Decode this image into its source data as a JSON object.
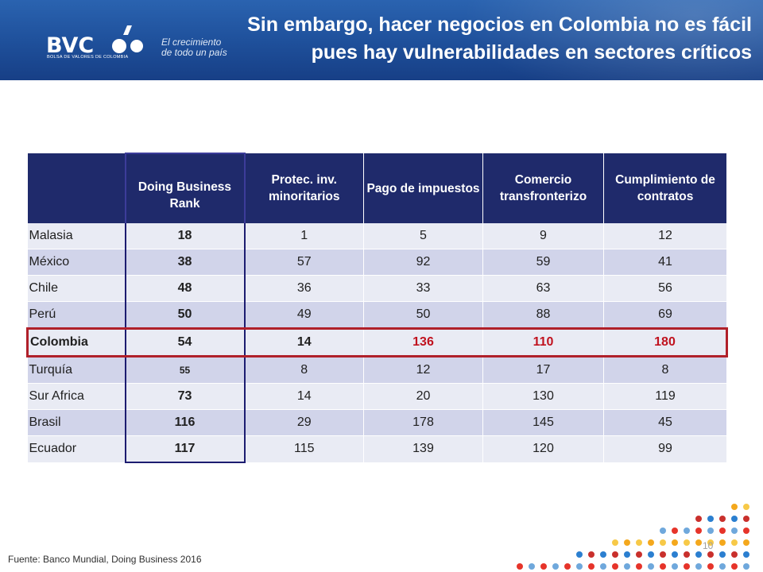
{
  "header": {
    "title_line1": "Sin embargo, hacer negocios en Colombia no es fácil",
    "title_line2": "pues hay vulnerabilidades en sectores críticos",
    "logo_text": "BVC",
    "logo_subtext": "BOLSA DE VALORES DE COLOMBIA",
    "tagline_line1": "El crecimiento",
    "tagline_line2": "de todo un país"
  },
  "table": {
    "columns": [
      "",
      "Doing Business Rank",
      "Protec. inv. minoritarios",
      "Pago de impuestos",
      "Comercio transfronterizo",
      "Cumplimiento de contratos"
    ],
    "rows": [
      {
        "country": "Malasia",
        "values": [
          "18",
          "1",
          "5",
          "9",
          "12"
        ]
      },
      {
        "country": "México",
        "values": [
          "38",
          "57",
          "92",
          "59",
          "41"
        ]
      },
      {
        "country": "Chile",
        "values": [
          "48",
          "36",
          "33",
          "63",
          "56"
        ]
      },
      {
        "country": "Perú",
        "values": [
          "50",
          "49",
          "50",
          "88",
          "69"
        ]
      },
      {
        "country": "Colombia",
        "values": [
          "54",
          "14",
          "136",
          "110",
          "180"
        ]
      },
      {
        "country": "Turquía",
        "values": [
          "55",
          "8",
          "12",
          "17",
          "8"
        ]
      },
      {
        "country": "Sur Africa",
        "values": [
          "73",
          "14",
          "20",
          "130",
          "119"
        ]
      },
      {
        "country": "Brasil",
        "values": [
          "116",
          "29",
          "178",
          "145",
          "45"
        ]
      },
      {
        "country": "Ecuador",
        "values": [
          "117",
          "115",
          "139",
          "120",
          "99"
        ]
      }
    ],
    "highlighted_row": "Colombia"
  },
  "footer": {
    "source": "Fuente: Banco Mundial, Doing Business 2016",
    "page_number": "10"
  },
  "colors": {
    "header_blue": "#1e4f9a",
    "table_header": "#1f2a6b",
    "highlight_red": "#c0121e"
  }
}
